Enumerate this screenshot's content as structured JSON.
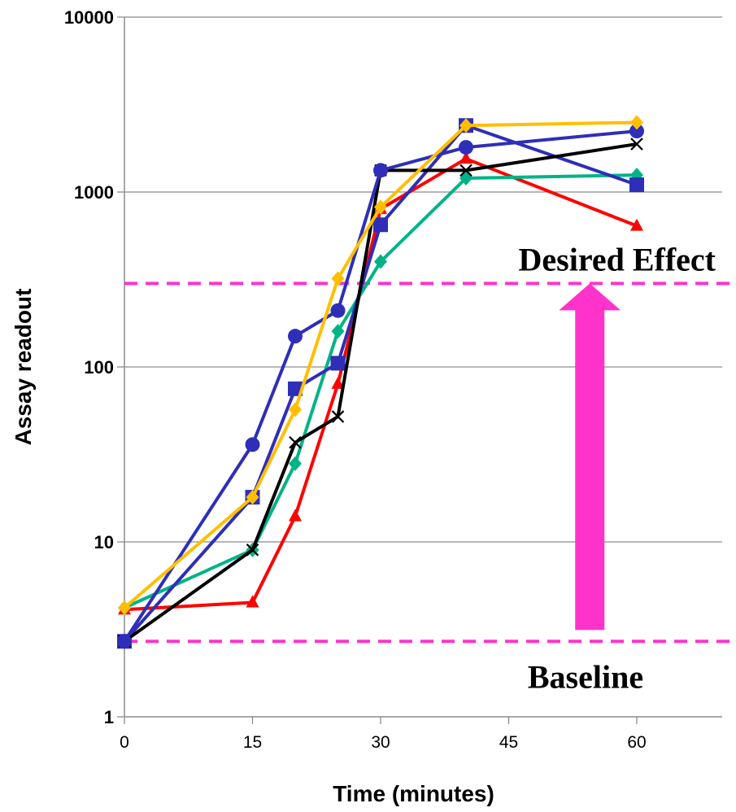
{
  "chart_data": {
    "type": "line",
    "xlabel": "Time (minutes)",
    "ylabel": "Assay readout",
    "xlim": [
      0,
      70
    ],
    "ylim": [
      1,
      10000
    ],
    "y_scale": "log",
    "x_ticks": [
      0,
      15,
      30,
      45,
      60
    ],
    "y_ticks": [
      1,
      10,
      100,
      1000,
      10000
    ],
    "x_tick_labels": [
      "0",
      "15",
      "30",
      "45",
      "60"
    ],
    "y_tick_labels": [
      "1",
      "10",
      "100",
      "1000",
      "10000"
    ],
    "grid": "horizontal",
    "legend": "none",
    "series": [
      {
        "color": "#ff0000",
        "marker": "triangle",
        "x": [
          0,
          15,
          20,
          25,
          30,
          40,
          60
        ],
        "y": [
          4.1,
          4.5,
          14,
          80,
          800,
          1550,
          640
        ]
      },
      {
        "color": "#00b386",
        "marker": "diamond",
        "x": [
          0,
          15,
          20,
          25,
          30,
          40,
          60
        ],
        "y": [
          4.2,
          9,
          28,
          160,
          400,
          1200,
          1250
        ]
      },
      {
        "color": "#2e2eb8",
        "marker": "square",
        "x": [
          0,
          15,
          20,
          25,
          30,
          40,
          60
        ],
        "y": [
          2.7,
          18,
          75,
          105,
          650,
          2400,
          1100
        ]
      },
      {
        "color": "#000000",
        "marker": "x",
        "x": [
          0,
          15,
          20,
          25,
          30,
          40,
          60
        ],
        "y": [
          2.7,
          9,
          37,
          52,
          1330,
          1330,
          1880
        ]
      },
      {
        "color": "#2e2eb8",
        "marker": "circle",
        "x": [
          0,
          15,
          20,
          25,
          30,
          40,
          60
        ],
        "y": [
          2.7,
          36,
          150,
          210,
          1330,
          1800,
          2230
        ]
      },
      {
        "color": "#ffbf00",
        "marker": "diamond",
        "x": [
          0,
          15,
          20,
          25,
          30,
          40,
          60
        ],
        "y": [
          4.2,
          18,
          57,
          320,
          820,
          2400,
          2500
        ]
      }
    ],
    "reference_lines": [
      {
        "label": "Desired Effect",
        "y": 300,
        "color": "#ff33cc",
        "style": "dashed"
      },
      {
        "label": "Baseline",
        "y": 2.7,
        "color": "#ff33cc",
        "style": "dashed"
      }
    ],
    "arrow": {
      "color": "#ff33cc",
      "x": 54.5,
      "from_y": 2.7,
      "to_y": 300
    },
    "annotations": {
      "desired_effect": "Desired Effect",
      "baseline": "Baseline"
    }
  }
}
